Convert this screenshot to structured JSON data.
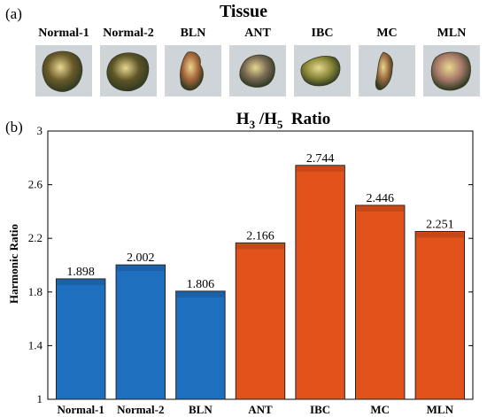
{
  "panel_a": {
    "label": "(a)",
    "title": "Tissue",
    "samples": [
      {
        "name": "Normal-1",
        "tone": "#6b5a2a"
      },
      {
        "name": "Normal-2",
        "tone": "#5e5426"
      },
      {
        "name": "BLN",
        "tone": "#a8663a"
      },
      {
        "name": "ANT",
        "tone": "#7a6a54"
      },
      {
        "name": "IBC",
        "tone": "#8c8a3a"
      },
      {
        "name": "MC",
        "tone": "#9a6a40"
      },
      {
        "name": "MLN",
        "tone": "#a87a6a"
      }
    ]
  },
  "panel_b": {
    "label": "(b)",
    "title_main": "H",
    "title_sub1": "3",
    "title_mid": " /H",
    "title_sub2": "5",
    "title_end": "  Ratio"
  },
  "chart_data": {
    "type": "bar",
    "title": "H3 /H5 Ratio",
    "ylabel": "Harmonic Ratio",
    "xlabel": "",
    "categories": [
      "Normal-1",
      "Normal-2",
      "BLN",
      "ANT",
      "IBC",
      "MC",
      "MLN"
    ],
    "values": [
      1.898,
      2.002,
      1.806,
      2.166,
      2.744,
      2.446,
      2.251
    ],
    "value_labels": [
      "1.898",
      "2.002",
      "1.806",
      "2.166",
      "2.744",
      "2.446",
      "2.251"
    ],
    "bar_colors": [
      "#1f6fbf",
      "#1f6fbf",
      "#1f6fbf",
      "#e2531b",
      "#e2531b",
      "#e2531b",
      "#e2531b"
    ],
    "ylim": [
      1,
      3
    ],
    "yticks": [
      1,
      1.4,
      1.8,
      2.2,
      2.6,
      3
    ],
    "ytick_labels": [
      "1",
      "1.4",
      "1.8",
      "2.2",
      "2.6",
      "3"
    ],
    "grid": false,
    "legend": "none"
  }
}
